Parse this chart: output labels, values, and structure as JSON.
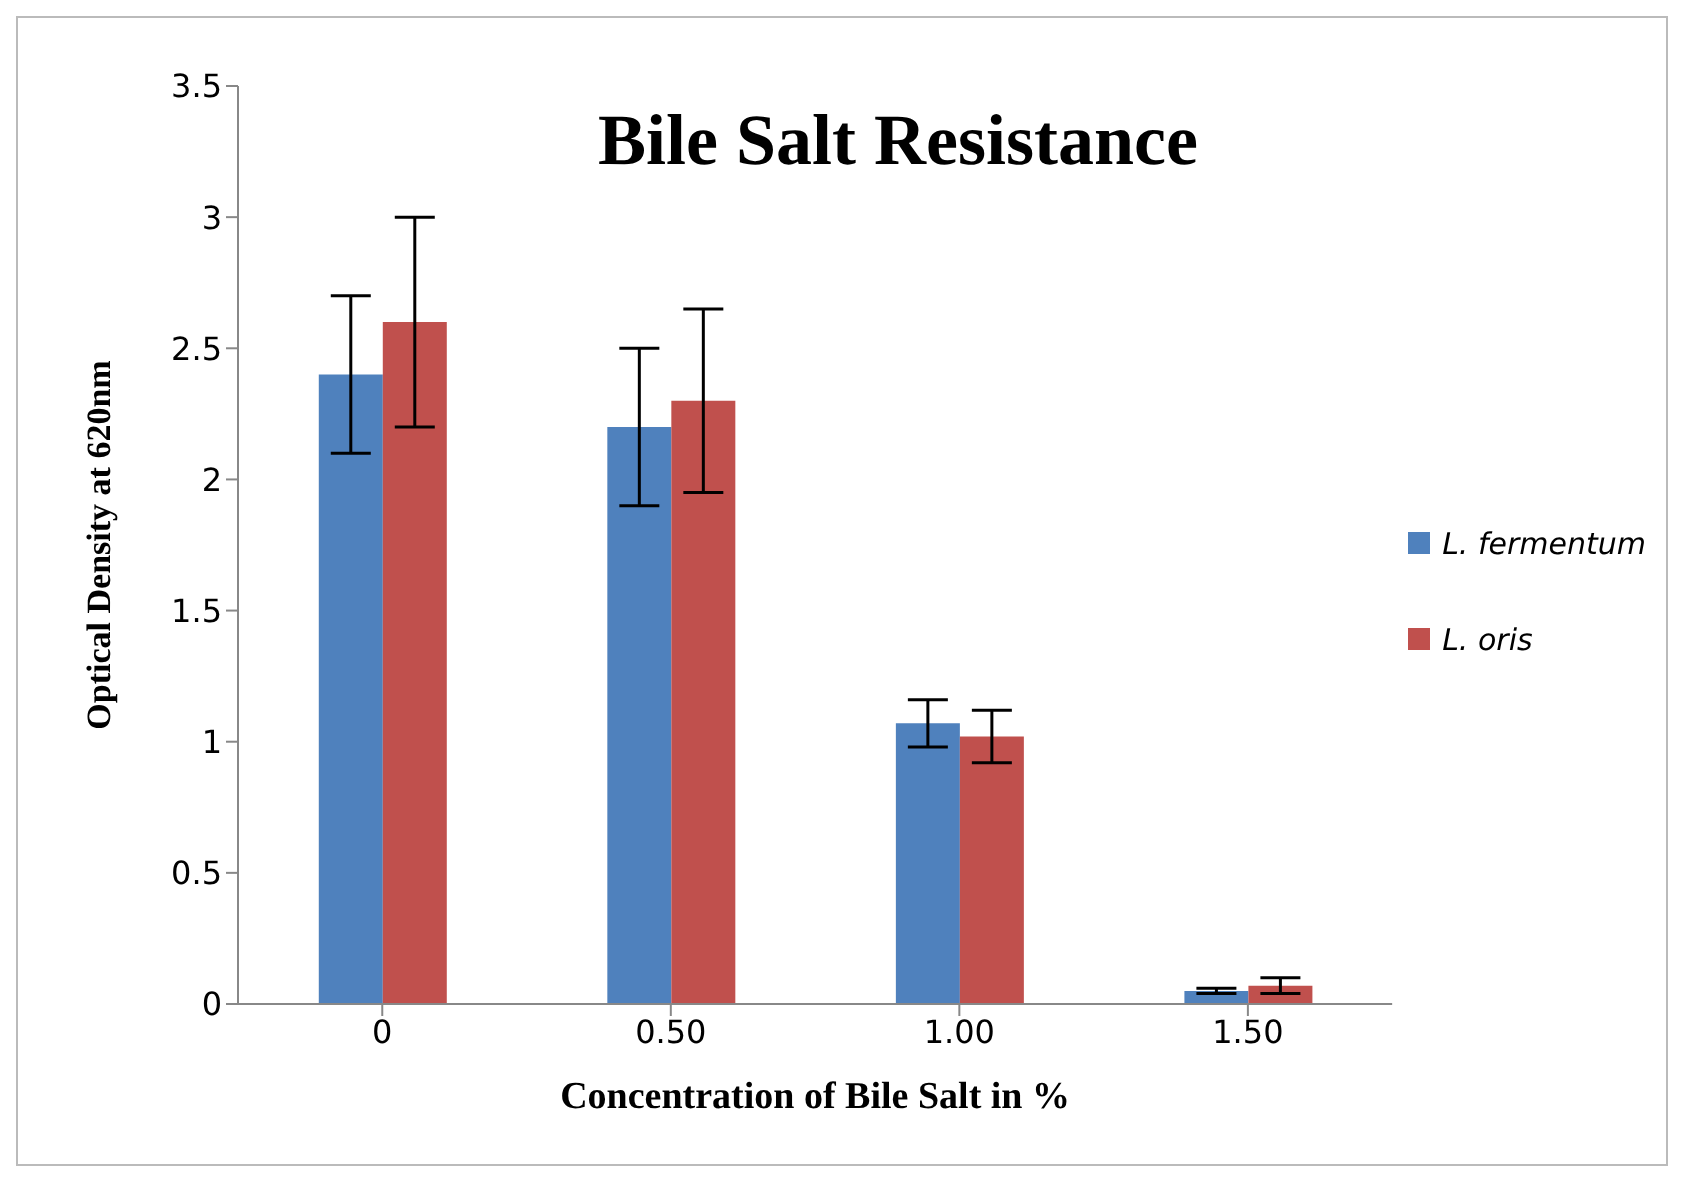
{
  "chart_data": {
    "type": "bar",
    "title": "Bile Salt Resistance",
    "xlabel": "Concentration  of Bile Salt in %",
    "ylabel": "Optical  Density at 620nm",
    "categories": [
      "0",
      "0.50",
      "1.00",
      "1.50"
    ],
    "series": [
      {
        "name": "L. fermentum",
        "color": "#4f81bd",
        "values": [
          2.4,
          2.2,
          1.07,
          0.05
        ],
        "errors": [
          0.3,
          0.3,
          0.09,
          0.01
        ]
      },
      {
        "name": "L. oris",
        "color": "#c0504d",
        "values": [
          2.6,
          2.3,
          1.02,
          0.07
        ],
        "errors": [
          0.4,
          0.35,
          0.1,
          0.03
        ]
      }
    ],
    "ylim": [
      0,
      3.5
    ],
    "yticks": [
      0,
      0.5,
      1,
      1.5,
      2,
      2.5,
      3,
      3.5
    ],
    "grid": false,
    "legend": "right"
  }
}
